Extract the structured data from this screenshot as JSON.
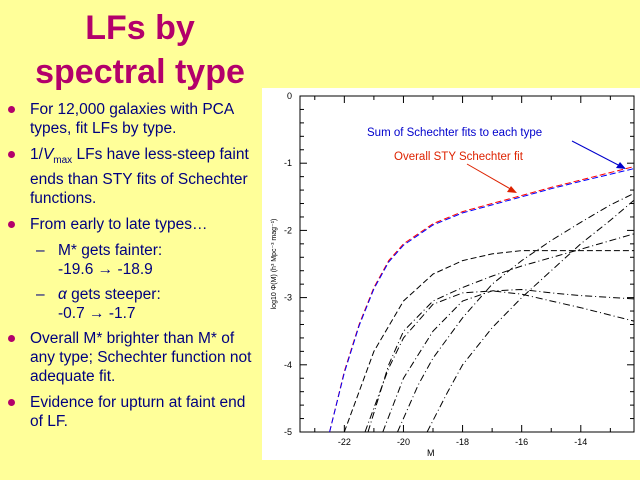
{
  "title": {
    "line1": "LFs by",
    "line2": "spectral type"
  },
  "bullets": [
    {
      "text": "For 12,000 galaxies with PCA types, fit LFs by type."
    },
    {
      "pre": "1/",
      "italic": "V",
      "subscript": "max",
      "post": " LFs have less-steep faint ends than STY fits of Schechter functions."
    },
    {
      "text": "From early to late types…"
    },
    {
      "text": "Overall M* brighter than M* of any type; Schechter function not adequate fit."
    },
    {
      "text": "Evidence for upturn at faint end of LF."
    }
  ],
  "subbullets": [
    {
      "line1": "M* gets fainter:",
      "line2_from": "-19.6",
      "line2_to": "-18.9"
    },
    {
      "greek": "α",
      "line1": " gets steeper:",
      "line2_from": "-0.7",
      "line2_to": "-1.7"
    }
  ],
  "colors": {
    "title": "#b3006b",
    "bullet_text": "#000080",
    "background": "#ffff99",
    "sum_label": "#0000cc",
    "sty_label": "#dd2200"
  },
  "chart_data": {
    "type": "line",
    "xlabel": "M",
    "ylabel": "log10 Φ(M) (h³ Mpc⁻³ mag⁻¹)",
    "xlim": [
      -23.5,
      -12.2
    ],
    "ylim": [
      -5,
      0
    ],
    "x_ticks": [
      "-22",
      "-20",
      "-18",
      "-16",
      "-14"
    ],
    "y_ticks": [
      "0",
      "-1",
      "-2",
      "-3",
      "-4",
      "-5"
    ],
    "annotations": [
      {
        "text": "Sum of Schechter fits to each type",
        "color": "blue"
      },
      {
        "text": "Overall STY Schechter fit",
        "color": "red"
      }
    ],
    "series": [
      {
        "style": "dashed",
        "color": "red",
        "x": [
          -22.5,
          -22,
          -21.5,
          -21,
          -20.5,
          -20,
          -19,
          -18,
          -17,
          -16,
          -15,
          -14,
          -12.2
        ],
        "y": [
          -5,
          -4.1,
          -3.4,
          -2.85,
          -2.45,
          -2.2,
          -1.9,
          -1.72,
          -1.6,
          -1.48,
          -1.36,
          -1.25,
          -1.05
        ]
      },
      {
        "style": "dashed",
        "color": "blue",
        "x": [
          -22.5,
          -22,
          -21.5,
          -21,
          -20.5,
          -20,
          -19,
          -18,
          -17,
          -16,
          -15,
          -14,
          -12.2
        ],
        "y": [
          -5,
          -4.12,
          -3.42,
          -2.87,
          -2.47,
          -2.22,
          -1.92,
          -1.74,
          -1.62,
          -1.5,
          -1.38,
          -1.27,
          -1.08
        ]
      },
      {
        "style": "dashed",
        "color": "black",
        "x": [
          -22,
          -21,
          -20,
          -19,
          -18,
          -17,
          -16,
          -14,
          -12.2
        ],
        "y": [
          -5,
          -3.8,
          -3.05,
          -2.65,
          -2.45,
          -2.35,
          -2.3,
          -2.3,
          -2.3
        ]
      },
      {
        "style": "dashdot",
        "color": "black",
        "x": [
          -21.2,
          -20.5,
          -20,
          -19,
          -18,
          -17,
          -16,
          -14,
          -12.2
        ],
        "y": [
          -5,
          -4,
          -3.5,
          -3.05,
          -2.85,
          -2.68,
          -2.53,
          -2.28,
          -2.05
        ]
      },
      {
        "style": "dashdot",
        "color": "black",
        "x": [
          -21.3,
          -20.5,
          -20,
          -19,
          -18,
          -17,
          -16,
          -15,
          -14,
          -12.2
        ],
        "y": [
          -5,
          -4.05,
          -3.6,
          -3.1,
          -2.93,
          -2.9,
          -2.95,
          -3.05,
          -3.15,
          -3.35
        ]
      },
      {
        "style": "dashdot",
        "color": "black",
        "x": [
          -20.7,
          -20,
          -19,
          -18,
          -17,
          -16,
          -15,
          -14,
          -12.2
        ],
        "y": [
          -5,
          -4.2,
          -3.5,
          -3.05,
          -2.9,
          -2.88,
          -2.93,
          -2.97,
          -3.02
        ]
      },
      {
        "style": "dashdot",
        "color": "black",
        "x": [
          -20.2,
          -19.5,
          -19,
          -18,
          -17,
          -16,
          -15,
          -14,
          -13,
          -12.2
        ],
        "y": [
          -5,
          -4.3,
          -3.9,
          -3.3,
          -2.8,
          -2.45,
          -2.15,
          -1.88,
          -1.62,
          -1.45
        ]
      },
      {
        "style": "dashdot",
        "color": "black",
        "x": [
          -19.2,
          -18.5,
          -18,
          -17,
          -16,
          -15,
          -14,
          -13,
          -12.2
        ],
        "y": [
          -5,
          -4.4,
          -4.0,
          -3.45,
          -3.0,
          -2.6,
          -2.2,
          -1.85,
          -1.55
        ]
      }
    ]
  }
}
